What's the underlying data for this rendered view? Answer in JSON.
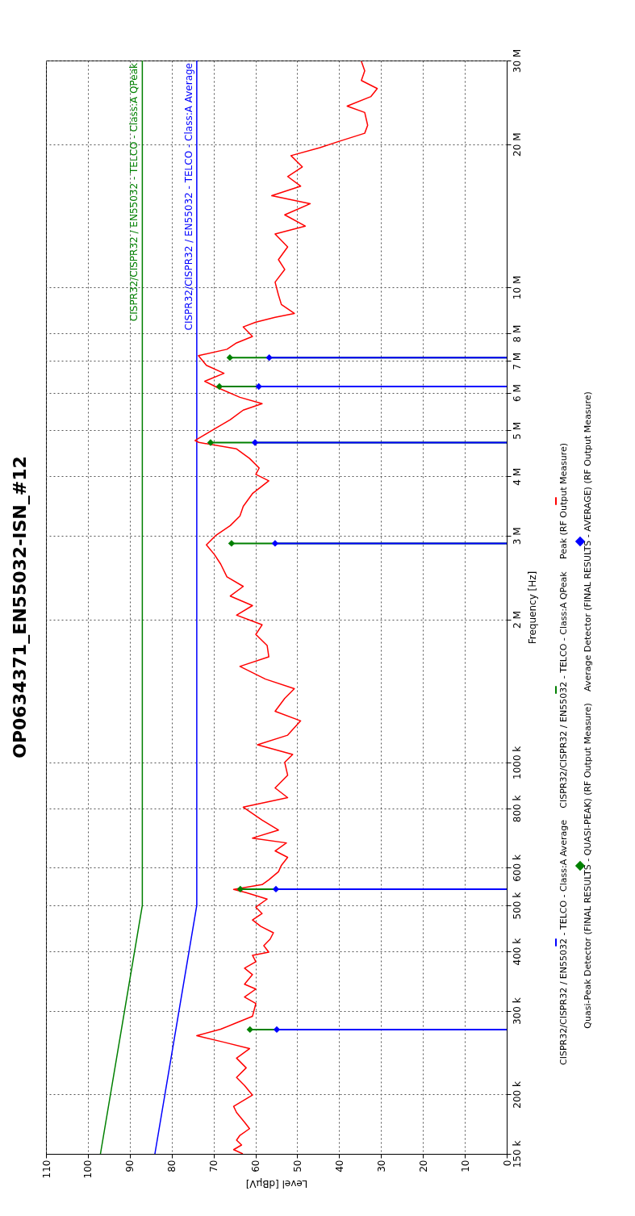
{
  "chart_data": {
    "type": "line",
    "orientation": "horizontal",
    "title": "OP0634371_EN55032-ISN_#12",
    "xlabel": "Level [dBµV]",
    "ylabel": "Frequency [Hz]",
    "log": "y",
    "grid": true,
    "legend": "right",
    "xlim": [
      110,
      0
    ],
    "xticks": [
      110,
      100,
      90,
      80,
      70,
      60,
      50,
      40,
      30,
      20,
      10,
      0
    ],
    "ylim": [
      150000,
      30000000
    ],
    "yticks": [
      {
        "value": 150000,
        "label": "150 k"
      },
      {
        "value": 200000,
        "label": "200 k"
      },
      {
        "value": 300000,
        "label": "300 k"
      },
      {
        "value": 400000,
        "label": "400 k"
      },
      {
        "value": 500000,
        "label": "500 k"
      },
      {
        "value": 600000,
        "label": "600 k"
      },
      {
        "value": 800000,
        "label": "800 k"
      },
      {
        "value": 1000000,
        "label": "1000 k"
      },
      {
        "value": 2000000,
        "label": "2 M"
      },
      {
        "value": 3000000,
        "label": "3 M"
      },
      {
        "value": 4000000,
        "label": "4 M"
      },
      {
        "value": 5000000,
        "label": "5 M"
      },
      {
        "value": 6000000,
        "label": "6 M"
      },
      {
        "value": 7000000,
        "label": "7 M"
      },
      {
        "value": 8000000,
        "label": "8 M"
      },
      {
        "value": 10000000,
        "label": "10 M"
      },
      {
        "value": 20000000,
        "label": "20 M"
      },
      {
        "value": 30000000,
        "label": "30 M"
      }
    ],
    "annotations": [
      {
        "text": "CISPR32/CISPR32 / EN55032 - TELCO - Class:A QPeak",
        "x": 87,
        "y": 30000000
      },
      {
        "text": "CISPR32/CISPR32 / EN55032 - TELCO - Class:A Average",
        "x": 74,
        "y": 30000000
      }
    ],
    "series": [
      {
        "name": "CISPR32/CISPR32 / EN55032 - TELCO - Class:A Average",
        "type": "line",
        "color": "#0000ff",
        "x": [
          150000,
          500000,
          30000000
        ],
        "values": [
          84,
          74,
          74
        ]
      },
      {
        "name": "CISPR32/CISPR32 / EN55032 - TELCO - Class:A QPeak",
        "type": "line",
        "color": "#008000",
        "x": [
          150000,
          500000,
          30000000
        ],
        "values": [
          97,
          87,
          87
        ]
      },
      {
        "name": "Peak (RF Output Measure)",
        "type": "line",
        "color": "#ff0000",
        "x": [
          150000,
          153100,
          156600,
          160300,
          164100,
          169500,
          174900,
          183300,
          188800,
          199400,
          209000,
          217200,
          227600,
          238500,
          249800,
          257700,
          266000,
          274400,
          283100,
          292100,
          310800,
          320700,
          333400,
          341300,
          357600,
          368900,
          380600,
          392600,
          398800,
          411400,
          424400,
          437900,
          451700,
          466000,
          480700,
          495900,
          515600,
          531900,
          540200,
          553000,
          566100,
          588500,
          607200,
          631200,
          651200,
          676900,
          692900,
          720400,
          756000,
          804900,
          843000,
          883600,
          940000,
          1000000,
          1039000,
          1089000,
          1141000,
          1223000,
          1281000,
          1364000,
          1429000,
          1497000,
          1592000,
          1668000,
          1762000,
          1859000,
          1948000,
          2041000,
          2138000,
          2239000,
          2346000,
          2458000,
          2615000,
          2739000,
          2870000,
          3007000,
          3150000,
          3300000,
          3458000,
          3679000,
          3914000,
          4038000,
          4164000,
          4362000,
          4569000,
          4714000,
          4757000,
          4984000,
          5263000,
          5513000,
          5687000,
          5866000,
          6146000,
          6339000,
          6591000,
          6850000,
          7176000,
          7403000,
          7636000,
          7876000,
          8250000,
          8445000,
          8644000,
          8807000,
          9196000,
          9634000,
          10250000,
          10900000,
          11430000,
          12160000,
          12940000,
          13450000,
          14200000,
          14990000,
          15580000,
          16320000,
          17100000,
          17920000,
          18920000,
          19660000,
          20280000,
          21090000,
          21920000,
          23320000,
          24050000,
          25200000,
          26190000,
          27230000,
          28530000,
          29890000
        ],
        "values": [
          63,
          65.2,
          63.3,
          64.5,
          63.7,
          61.4,
          62.6,
          64.5,
          65.2,
          60.7,
          62.6,
          64.5,
          62.2,
          64.5,
          61.4,
          67.5,
          74,
          68.3,
          64.5,
          60.7,
          59.9,
          62.6,
          59.9,
          62.6,
          60.7,
          62.6,
          59.9,
          60.7,
          56.8,
          58,
          56.5,
          55.7,
          58.7,
          60.7,
          58.4,
          59.9,
          57.2,
          62.2,
          65.2,
          58.4,
          56.8,
          54.5,
          53.8,
          52.3,
          55.3,
          52.6,
          60.7,
          54.5,
          58.4,
          62.9,
          52.3,
          55.3,
          52.3,
          53,
          51.1,
          59.5,
          52.3,
          49.2,
          55.3,
          53,
          50.7,
          57.6,
          63.7,
          56.8,
          57.2,
          59.9,
          58.4,
          64.5,
          60.7,
          66,
          62.9,
          66.8,
          68.3,
          69.8,
          71.7,
          69.4,
          66,
          63.7,
          62.9,
          60.7,
          56.8,
          59.9,
          59.1,
          61.4,
          64.5,
          73.5,
          74.4,
          70.6,
          66,
          62.9,
          58.4,
          63.7,
          69,
          72.1,
          67.5,
          71.7,
          73.6,
          66.8,
          64.5,
          60.7,
          62.9,
          59.9,
          55.3,
          50.7,
          53.8,
          54.5,
          55.3,
          53,
          54.5,
          52.3,
          55.3,
          48.1,
          53,
          46.9,
          56.1,
          49.2,
          52.3,
          48.8,
          51.5,
          44.6,
          40,
          33.9,
          33.2,
          33.9,
          38.1,
          32.4,
          30.9,
          34.7,
          33.9,
          34.7
        ]
      },
      {
        "name": "Quasi-Peak Detector (FINAL RESULTS - QUASI-PEAK) (RF Output Measure)",
        "type": "lollipop",
        "marker": "diamond",
        "color": "#008000",
        "x": [
          274000,
          541000,
          2890000,
          4710000,
          6180000,
          7110000
        ],
        "values": [
          61.3,
          63.6,
          65.7,
          70.7,
          68.6,
          66.1
        ]
      },
      {
        "name": "Average Detector (FINAL RESULTS - AVERAGE) (RF Output Measure)",
        "type": "lollipop",
        "marker": "diamond",
        "color": "#0000ff",
        "x": [
          274000,
          541000,
          2890000,
          4710000,
          6180000,
          7110000
        ],
        "values": [
          54.9,
          55.1,
          55.3,
          60.1,
          59.2,
          56.7
        ]
      }
    ]
  }
}
